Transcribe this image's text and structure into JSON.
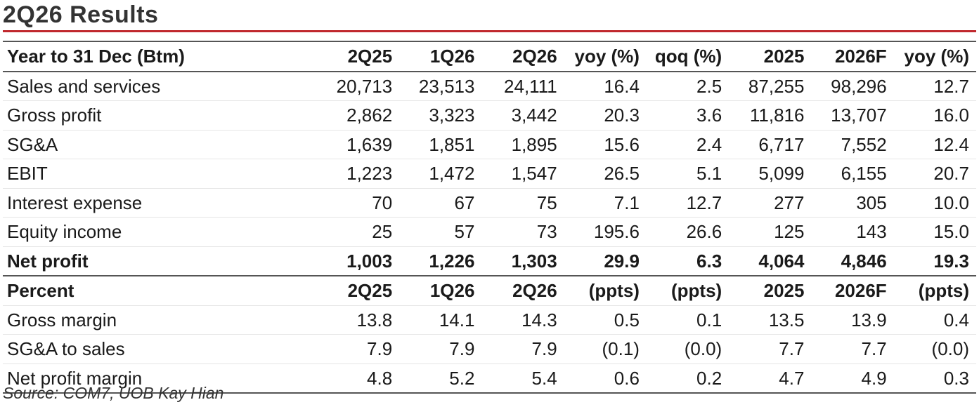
{
  "title": "2Q26 Results",
  "header": {
    "label": "Year to 31 Dec (Btm)",
    "cols": [
      "2Q25",
      "1Q26",
      "2Q26",
      "yoy (%)",
      "qoq (%)",
      "2025",
      "2026F",
      "yoy (%)"
    ]
  },
  "rows": [
    {
      "label": "Sales and services",
      "values": [
        "20,713",
        "23,513",
        "24,111",
        "16.4",
        "2.5",
        "87,255",
        "98,296",
        "12.7"
      ]
    },
    {
      "label": "Gross profit",
      "values": [
        "2,862",
        "3,323",
        "3,442",
        "20.3",
        "3.6",
        "11,816",
        "13,707",
        "16.0"
      ]
    },
    {
      "label": "SG&A",
      "values": [
        "1,639",
        "1,851",
        "1,895",
        "15.6",
        "2.4",
        "6,717",
        "7,552",
        "12.4"
      ]
    },
    {
      "label": "EBIT",
      "values": [
        "1,223",
        "1,472",
        "1,547",
        "26.5",
        "5.1",
        "5,099",
        "6,155",
        "20.7"
      ]
    },
    {
      "label": "Interest expense",
      "values": [
        "70",
        "67",
        "75",
        "7.1",
        "12.7",
        "277",
        "305",
        "10.0"
      ]
    },
    {
      "label": "Equity income",
      "values": [
        "25",
        "57",
        "73",
        "195.6",
        "26.6",
        "125",
        "143",
        "15.0"
      ]
    },
    {
      "label": "Net profit",
      "values": [
        "1,003",
        "1,226",
        "1,303",
        "29.9",
        "6.3",
        "4,064",
        "4,846",
        "19.3"
      ]
    }
  ],
  "percent_header": {
    "label": "Percent",
    "cols": [
      "2Q25",
      "1Q26",
      "2Q26",
      "(ppts)",
      "(ppts)",
      "2025",
      "2026F",
      "(ppts)"
    ]
  },
  "percent_rows": [
    {
      "label": "Gross margin",
      "values": [
        "13.8",
        "14.1",
        "14.3",
        "0.5",
        "0.1",
        "13.5",
        "13.9",
        "0.4"
      ]
    },
    {
      "label": "SG&A to sales",
      "values": [
        "7.9",
        "7.9",
        "7.9",
        "(0.1)",
        "(0.0)",
        "7.7",
        "7.7",
        "(0.0)"
      ]
    },
    {
      "label": "Net profit margin",
      "values": [
        "4.8",
        "5.2",
        "5.4",
        "0.6",
        "0.2",
        "4.7",
        "4.9",
        "0.3"
      ]
    }
  ],
  "source": "Source: COM7, UOB Kay Hian",
  "colors": {
    "accent_rule": "#c0272d",
    "title_text": "#333333"
  }
}
